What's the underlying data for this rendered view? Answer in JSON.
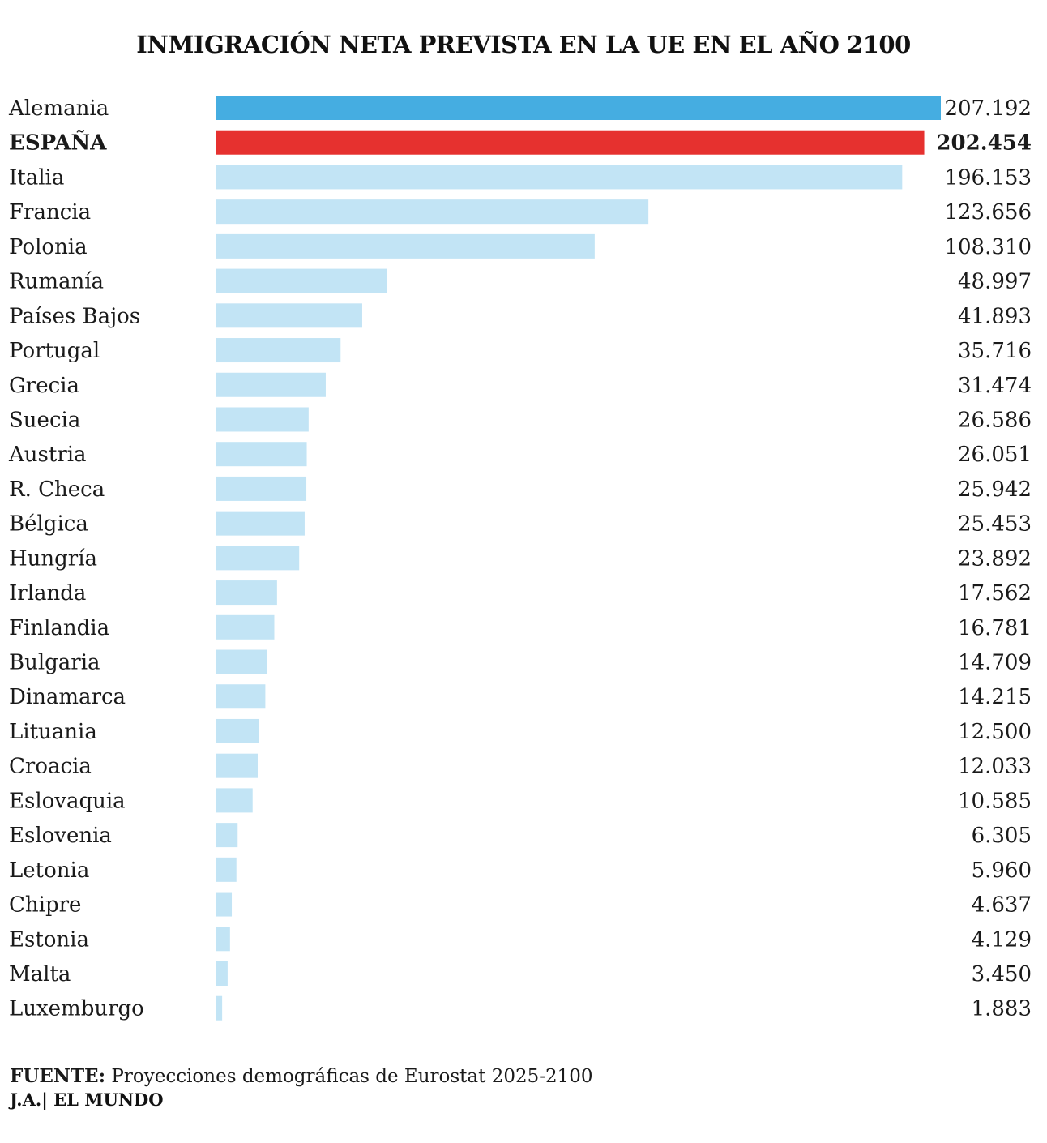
{
  "title": "INMIGRACIÓN NETA PREVISTA EN LA UE EN EL AÑO 2100",
  "source_label": "FUENTE:",
  "source_text": "Proyecciones demográficas de Eurostat 2025-2100",
  "credit": "J.A.| EL MUNDO",
  "colors": {
    "first": "#45ade1",
    "highlight": "#e6312f",
    "default": "#c2e4f5"
  },
  "chart_data": {
    "type": "bar",
    "orientation": "horizontal",
    "title": "INMIGRACIÓN NETA PREVISTA EN LA UE EN EL AÑO 2100",
    "highlight": "ESPAÑA",
    "categories": [
      "Alemania",
      "ESPAÑA",
      "Italia",
      "Francia",
      "Polonia",
      "Rumanía",
      "Países Bajos",
      "Portugal",
      "Grecia",
      "Suecia",
      "Austria",
      "R. Checa",
      "Bélgica",
      "Hungría",
      "Irlanda",
      "Finlandia",
      "Bulgaria",
      "Dinamarca",
      "Lituania",
      "Croacia",
      "Eslovaquia",
      "Eslovenia",
      "Letonia",
      "Chipre",
      "Estonia",
      "Malta",
      "Luxemburgo"
    ],
    "values": [
      207192,
      202454,
      196153,
      123656,
      108310,
      48997,
      41893,
      35716,
      31474,
      26586,
      26051,
      25942,
      25453,
      23892,
      17562,
      16781,
      14709,
      14215,
      12500,
      12033,
      10585,
      6305,
      5960,
      4637,
      4129,
      3450,
      1883
    ],
    "value_labels": [
      "207.192",
      "202.454",
      "196.153",
      "123.656",
      "108.310",
      "48.997",
      "41.893",
      "35.716",
      "31.474",
      "26.586",
      "26.051",
      "25.942",
      "25.453",
      "23.892",
      "17.562",
      "16.781",
      "14.709",
      "14.215",
      "12.500",
      "12.033",
      "10.585",
      "6.305",
      "5.960",
      "4.637",
      "4.129",
      "3.450",
      "1.883"
    ],
    "xlim": [
      0,
      207192
    ],
    "grid": false,
    "legend": "none"
  }
}
